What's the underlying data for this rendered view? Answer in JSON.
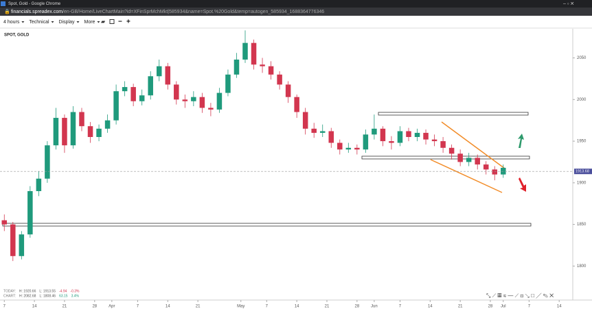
{
  "window": {
    "title": "Spot, Gold - Google Chrome",
    "url_host": "financials.spreadex.com",
    "url_path": "/en-GB/Home/LiveChartMain?id=XFinSprMchMkt|585934&name=Spot.%20Gold&temp=autogen_585934_1688364776346"
  },
  "toolbar": {
    "items": [
      "4 hours",
      "Technical",
      "Display",
      "More"
    ]
  },
  "info": {
    "today": [
      "TODAY:",
      "H: 1920.66",
      "L: 1913.55",
      "-4.94",
      "-0.3%"
    ],
    "chart": [
      "CHART:",
      "H: 2082.68",
      "L: 1808.46",
      "63.15",
      "3.4%"
    ]
  },
  "chart_data": {
    "type": "candlestick",
    "title": "SPOT, GOLD",
    "x": [
      0,
      2,
      4,
      6,
      8,
      10,
      12,
      14,
      16,
      18,
      20,
      22,
      24,
      26,
      28,
      30,
      32,
      34,
      36,
      38,
      40,
      42,
      44,
      46,
      48,
      50,
      52,
      54,
      56,
      58,
      60,
      62,
      64,
      66,
      68,
      70,
      72,
      74,
      76,
      78,
      80,
      82,
      84,
      86,
      88,
      90,
      92,
      94,
      96,
      98,
      100,
      102,
      104,
      106,
      108,
      110,
      112,
      114,
      116
    ],
    "open": [
      1855,
      1850,
      1812,
      1838,
      1890,
      1905,
      1945,
      1978,
      1945,
      1985,
      1968,
      1955,
      1965,
      1975,
      2010,
      2015,
      1998,
      2005,
      2028,
      2040,
      2018,
      2000,
      1998,
      2003,
      1990,
      1988,
      2008,
      2030,
      2048,
      2068,
      2042,
      2040,
      2030,
      2018,
      2003,
      1985,
      1965,
      1960,
      1962,
      1948,
      1940,
      1942,
      1940,
      1958,
      1965,
      1950,
      1948,
      1962,
      1955,
      1960,
      1952,
      1950,
      1942,
      1935,
      1925,
      1930,
      1922,
      1916,
      1910
    ],
    "high": [
      1862,
      1853,
      1842,
      1896,
      1914,
      1950,
      1990,
      1982,
      1992,
      1990,
      1973,
      1970,
      1982,
      2018,
      2022,
      2019,
      2012,
      2034,
      2048,
      2044,
      2022,
      2006,
      2010,
      2008,
      1996,
      2014,
      2036,
      2056,
      2083,
      2072,
      2050,
      2046,
      2034,
      2022,
      2006,
      1990,
      1972,
      1970,
      1966,
      1952,
      1948,
      1946,
      1964,
      1982,
      1968,
      1956,
      1968,
      1966,
      1965,
      1964,
      1958,
      1955,
      1946,
      1940,
      1936,
      1934,
      1926,
      1920,
      1922
    ],
    "low": [
      1842,
      1806,
      1808,
      1834,
      1884,
      1900,
      1940,
      1936,
      1941,
      1962,
      1948,
      1950,
      1960,
      1970,
      2004,
      1992,
      1993,
      2000,
      2022,
      2012,
      1994,
      1990,
      1992,
      1984,
      1980,
      1984,
      2004,
      2026,
      2044,
      2036,
      2032,
      2024,
      2012,
      1996,
      1978,
      1958,
      1954,
      1955,
      1942,
      1934,
      1936,
      1934,
      1936,
      1952,
      1944,
      1940,
      1944,
      1950,
      1950,
      1946,
      1944,
      1936,
      1928,
      1920,
      1920,
      1916,
      1910,
      1903,
      1906
    ],
    "close": [
      1850,
      1812,
      1838,
      1890,
      1905,
      1945,
      1978,
      1945,
      1985,
      1968,
      1955,
      1965,
      1975,
      2010,
      2015,
      1998,
      2005,
      2028,
      2040,
      2018,
      2000,
      1998,
      2003,
      1990,
      1988,
      2008,
      2030,
      2048,
      2068,
      2042,
      2040,
      2030,
      2018,
      2003,
      1985,
      1965,
      1960,
      1962,
      1948,
      1940,
      1942,
      1940,
      1958,
      1965,
      1950,
      1948,
      1962,
      1955,
      1960,
      1952,
      1950,
      1942,
      1935,
      1925,
      1930,
      1922,
      1916,
      1910,
      1918
    ],
    "up_color": "#1f9a7c",
    "down_color": "#d2364f",
    "last_price": 1913.68,
    "xlim": [
      -1,
      132
    ],
    "xticks": [
      {
        "value": 0,
        "label": "7"
      },
      {
        "value": 7,
        "label": "14"
      },
      {
        "value": 14,
        "label": "21"
      },
      {
        "value": 21,
        "label": "28"
      },
      {
        "value": 25,
        "label": "Apr"
      },
      {
        "value": 31,
        "label": "7"
      },
      {
        "value": 38,
        "label": "14"
      },
      {
        "value": 45,
        "label": "21"
      },
      {
        "value": 55,
        "label": "May"
      },
      {
        "value": 61,
        "label": "7"
      },
      {
        "value": 68,
        "label": "14"
      },
      {
        "value": 75,
        "label": "21"
      },
      {
        "value": 82,
        "label": "28"
      },
      {
        "value": 86,
        "label": "Jun"
      },
      {
        "value": 92,
        "label": "7"
      },
      {
        "value": 99,
        "label": "14"
      },
      {
        "value": 106,
        "label": "21"
      },
      {
        "value": 113,
        "label": "28"
      },
      {
        "value": 116,
        "label": "Jul"
      },
      {
        "value": 122,
        "label": "7"
      },
      {
        "value": 129,
        "label": "14"
      }
    ],
    "ylim": [
      1760,
      2085
    ],
    "yticks": [
      1800,
      1850,
      1900,
      1950,
      2000,
      2050
    ],
    "grid": false
  }
}
